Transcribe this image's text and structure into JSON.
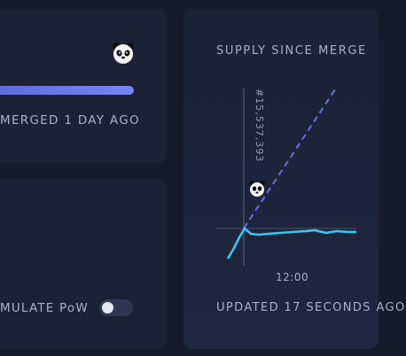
{
  "merge_card": {
    "progress_percent": 100,
    "caption": "MERGED 1 DAY AGO"
  },
  "pow_card": {
    "toggle_label": "MULATE PoW",
    "toggle_on": false
  },
  "chart_card": {
    "title": "SUPPLY SINCE MERGE",
    "supply_label": "#15,537,393",
    "time_tick": "12:00",
    "updated_caption": "UPDATED 17 SECONDS AGO"
  },
  "icons": {
    "panda": "panda-icon",
    "toggle": "toggle-switch"
  },
  "colors": {
    "progress_fill": "#6878e6",
    "pow_line": "#5a6cd8",
    "actual_line": "#3cc6ee",
    "card_bg": "#1c2235",
    "page_bg": "#161b2b"
  }
}
